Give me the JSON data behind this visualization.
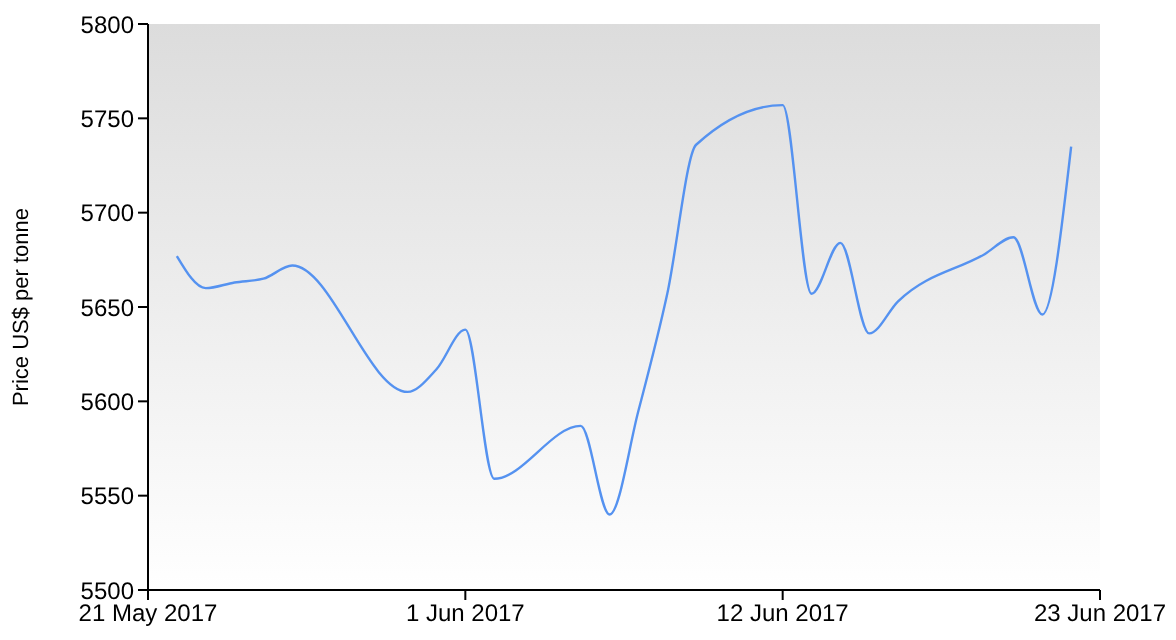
{
  "chart_data": {
    "type": "line",
    "ylabel": "Price US$ per tonne",
    "x": [
      "2017-05-22",
      "2017-05-23",
      "2017-05-24",
      "2017-05-25",
      "2017-05-26",
      "2017-05-30",
      "2017-05-31",
      "2017-06-01",
      "2017-06-02",
      "2017-06-05",
      "2017-06-06",
      "2017-06-07",
      "2017-06-08",
      "2017-06-09",
      "2017-06-12",
      "2017-06-13",
      "2017-06-14",
      "2017-06-15",
      "2017-06-16",
      "2017-06-19",
      "2017-06-20",
      "2017-06-21",
      "2017-06-22"
    ],
    "series": [
      {
        "color": "#5592f0",
        "values": [
          5677,
          5660,
          5663,
          5665,
          5672,
          5605,
          5617,
          5638,
          5559,
          5587,
          5540,
          5595,
          5657,
          5736,
          5757,
          5657,
          5684,
          5636,
          5653,
          5678,
          5687,
          5646,
          5735
        ]
      }
    ],
    "xlim": [
      "2017-05-21",
      "2017-06-23"
    ],
    "xticks": [
      {
        "value": "2017-05-21",
        "label": "21 May 2017"
      },
      {
        "value": "2017-06-01",
        "label": "1 Jun 2017"
      },
      {
        "value": "2017-06-12",
        "label": "12 Jun 2017"
      },
      {
        "value": "2017-06-23",
        "label": "23 Jun 2017"
      }
    ],
    "ylim": [
      5500,
      5800
    ],
    "yticks": [
      5500,
      5550,
      5600,
      5650,
      5700,
      5750,
      5800
    ],
    "grid": false,
    "legend": false,
    "marker": "none",
    "line_style": "solid"
  }
}
